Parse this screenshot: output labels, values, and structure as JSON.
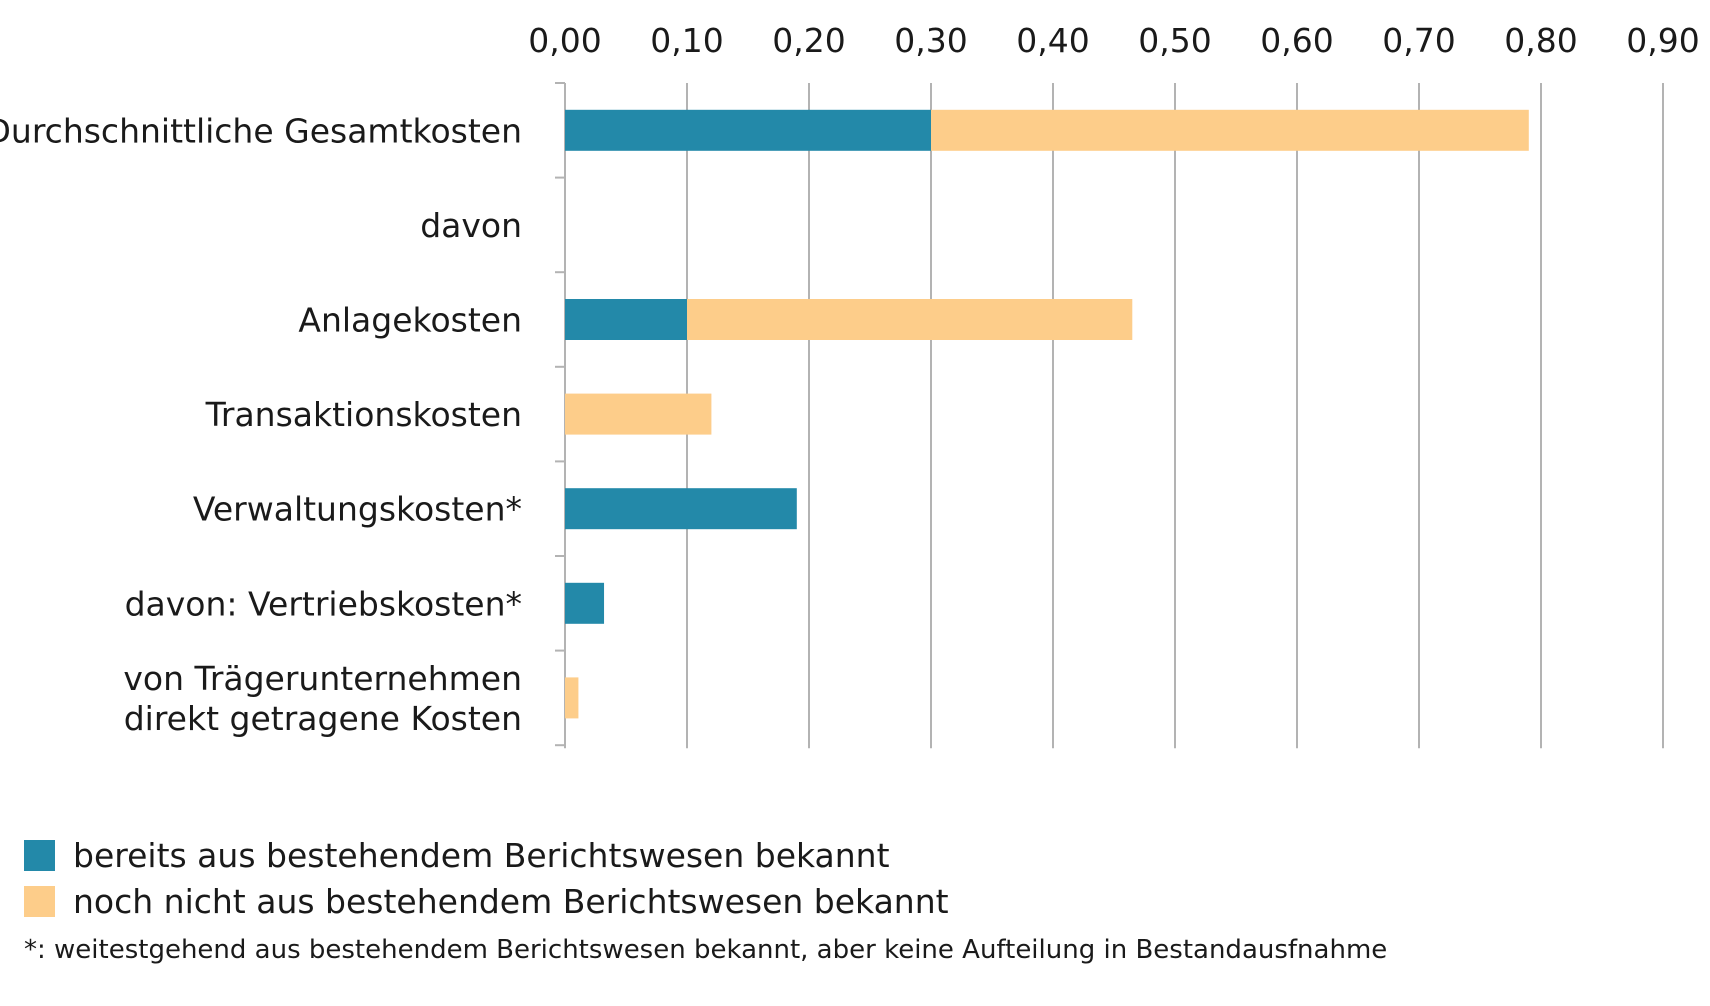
{
  "chart_data": {
    "type": "bar",
    "orientation": "horizontal",
    "stacked": true,
    "xlim": [
      0,
      0.9
    ],
    "ticks": [
      0,
      0.1,
      0.2,
      0.3,
      0.4,
      0.5,
      0.6,
      0.7,
      0.8,
      0.9
    ],
    "tick_labels": [
      "0,00",
      "0,10",
      "0,20",
      "0,30",
      "0,40",
      "0,50",
      "0,60",
      "0,70",
      "0,80",
      "0,90"
    ],
    "axis_position": "top",
    "grid": "vertical",
    "categories": [
      [
        "Durchschnittliche Gesamtkosten"
      ],
      [
        "davon"
      ],
      [
        "Anlagekosten"
      ],
      [
        "Transaktionskosten"
      ],
      [
        "Verwaltungskosten*"
      ],
      [
        "davon: Vertriebskosten*"
      ],
      [
        "von Trägerunternehmen",
        "direkt getragene Kosten"
      ]
    ],
    "series": [
      {
        "name": "bereits aus bestehendem Berichtswesen bekannt",
        "color": "#2389A9",
        "values": [
          0.3,
          0,
          0.1,
          0,
          0.19,
          0.032,
          0
        ]
      },
      {
        "name": "noch nicht aus bestehendem Berichtswesen bekannt",
        "color": "#FDCD8A",
        "values": [
          0.49,
          0,
          0.365,
          0.12,
          0,
          0,
          0.011
        ]
      }
    ],
    "legend_position": "bottom-left",
    "footnote": "*: weitestgehend aus bestehendem Berichtswesen bekannt, aber keine Aufteilung in Bestandausfnahme"
  }
}
